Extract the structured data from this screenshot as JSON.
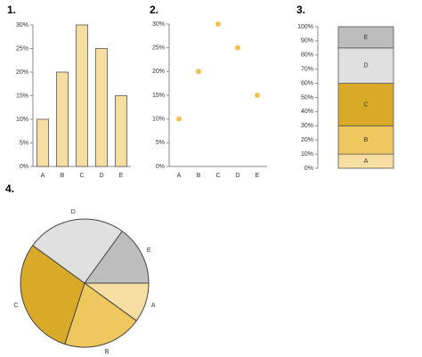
{
  "chart_data": [
    {
      "type": "bar",
      "title": "1.",
      "categories": [
        "A",
        "B",
        "C",
        "D",
        "E"
      ],
      "values": [
        10,
        20,
        30,
        25,
        15
      ],
      "color": "#f6dea2",
      "ylim": [
        0,
        30
      ],
      "yticks": [
        {
          "value": 0,
          "label": "0%"
        },
        {
          "value": 5,
          "label": "5%"
        },
        {
          "value": 10,
          "label": "10%"
        },
        {
          "value": 15,
          "label": "15%"
        },
        {
          "value": 20,
          "label": "20%"
        },
        {
          "value": 25,
          "label": "25%"
        },
        {
          "value": 30,
          "label": "30%"
        }
      ]
    },
    {
      "type": "scatter",
      "title": "2.",
      "categories": [
        "A",
        "B",
        "C",
        "D",
        "E"
      ],
      "values": [
        10,
        20,
        30,
        25,
        15
      ],
      "color": "#f0c252",
      "ylim": [
        0,
        30
      ],
      "yticks": [
        {
          "value": 0,
          "label": "0%"
        },
        {
          "value": 5,
          "label": "5%"
        },
        {
          "value": 10,
          "label": "10%"
        },
        {
          "value": 15,
          "label": "15%"
        },
        {
          "value": 20,
          "label": "20%"
        },
        {
          "value": 25,
          "label": "25%"
        },
        {
          "value": 30,
          "label": "30%"
        }
      ]
    },
    {
      "type": "stacked_bar",
      "title": "3.",
      "series": [
        {
          "name": "A",
          "color": "#f6dea2",
          "values": [
            10
          ]
        },
        {
          "name": "B",
          "color": "#eec75e",
          "values": [
            20
          ]
        },
        {
          "name": "C",
          "color": "#d9a928",
          "values": [
            30
          ]
        },
        {
          "name": "D",
          "color": "#e0e0e0",
          "values": [
            25
          ]
        },
        {
          "name": "E",
          "color": "#bdbdbd",
          "values": [
            15
          ]
        }
      ],
      "ylim": [
        0,
        100
      ],
      "yticks": [
        {
          "value": 0,
          "label": "0%"
        },
        {
          "value": 10,
          "label": "10%"
        },
        {
          "value": 20,
          "label": "20%"
        },
        {
          "value": 30,
          "label": "30%"
        },
        {
          "value": 40,
          "label": "40%"
        },
        {
          "value": 50,
          "label": "50%"
        },
        {
          "value": 60,
          "label": "60%"
        },
        {
          "value": 70,
          "label": "70%"
        },
        {
          "value": 80,
          "label": "80%"
        },
        {
          "value": 90,
          "label": "90%"
        },
        {
          "value": 100,
          "label": "100%"
        }
      ]
    },
    {
      "type": "pie",
      "title": "4.",
      "categories": [
        "A",
        "B",
        "C",
        "D",
        "E"
      ],
      "values": [
        10,
        20,
        30,
        25,
        15
      ],
      "colors": [
        "#f6dea2",
        "#eec75e",
        "#d9a928",
        "#e0e0e0",
        "#bdbdbd"
      ]
    }
  ]
}
